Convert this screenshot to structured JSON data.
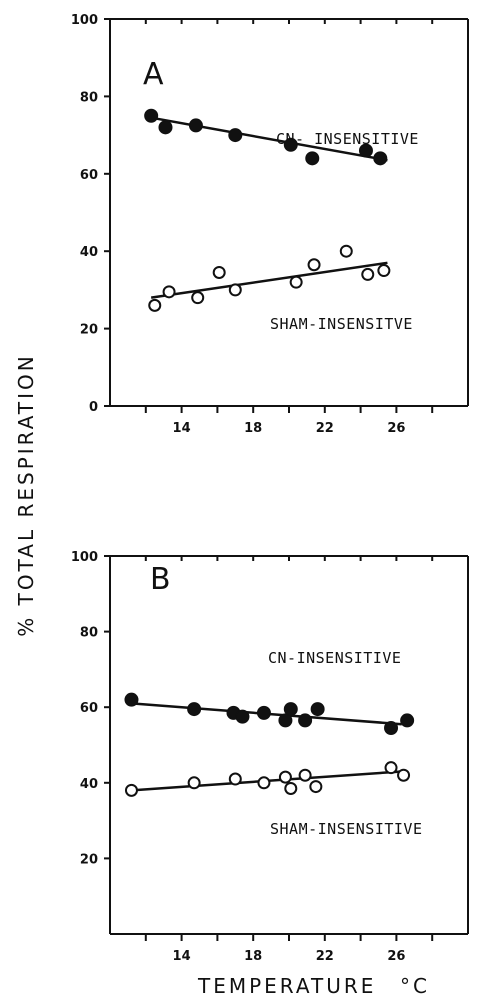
{
  "ylabel": "% TOTAL RESPIRATION",
  "xlabel": "TEMPERATURE",
  "xunit": "°C",
  "chart_data": [
    {
      "type": "scatter",
      "panel": "A",
      "xlim": [
        10,
        30
      ],
      "ylim": [
        0,
        100
      ],
      "xticks": [
        14,
        18,
        22,
        26
      ],
      "yticks": [
        0,
        20,
        40,
        60,
        80,
        100
      ],
      "annotations": [
        "CN- INSENSITIVE",
        "SHAM-INSENSITVE"
      ],
      "series": [
        {
          "marker": "filled-circle",
          "x": [
            12.3,
            13.1,
            14.8,
            17.0,
            20.1,
            21.3,
            24.3,
            25.1
          ],
          "y": [
            75,
            72,
            72.5,
            70,
            67.5,
            64,
            66,
            64
          ],
          "fit": [
            [
              12.3,
              74.5
            ],
            [
              25.5,
              63.5
            ]
          ]
        },
        {
          "marker": "open-circle",
          "x": [
            12.5,
            13.3,
            14.9,
            16.1,
            17.0,
            20.4,
            21.4,
            23.2,
            24.4,
            25.3
          ],
          "y": [
            26,
            29.5,
            28,
            34.5,
            30,
            32,
            36.5,
            40,
            34,
            35
          ],
          "fit": [
            [
              12.3,
              28
            ],
            [
              25.5,
              37
            ]
          ]
        }
      ]
    },
    {
      "type": "scatter",
      "panel": "B",
      "xlim": [
        10,
        30
      ],
      "ylim": [
        0,
        100
      ],
      "xticks": [
        14,
        18,
        22,
        26
      ],
      "yticks": [
        20,
        40,
        60,
        80,
        100
      ],
      "annotations": [
        "CN-INSENSITIVE",
        "SHAM-INSENSITIVE"
      ],
      "series": [
        {
          "marker": "filled-circle",
          "x": [
            11.2,
            14.7,
            16.9,
            17.4,
            18.6,
            19.8,
            20.1,
            20.9,
            21.6,
            25.7,
            26.6
          ],
          "y": [
            62,
            59.5,
            58.5,
            57.5,
            58.5,
            56.5,
            59.5,
            56.5,
            59.5,
            54.5,
            56.5
          ],
          "fit": [
            [
              11.2,
              61
            ],
            [
              26.3,
              55.5
            ]
          ]
        },
        {
          "marker": "open-circle",
          "x": [
            11.2,
            14.7,
            17.0,
            18.6,
            19.8,
            20.1,
            20.9,
            21.5,
            25.7,
            26.4
          ],
          "y": [
            38,
            40,
            41,
            40,
            41.5,
            38.5,
            42,
            39,
            44,
            42
          ],
          "fit": [
            [
              11.2,
              38
            ],
            [
              26.3,
              43
            ]
          ]
        }
      ]
    }
  ]
}
